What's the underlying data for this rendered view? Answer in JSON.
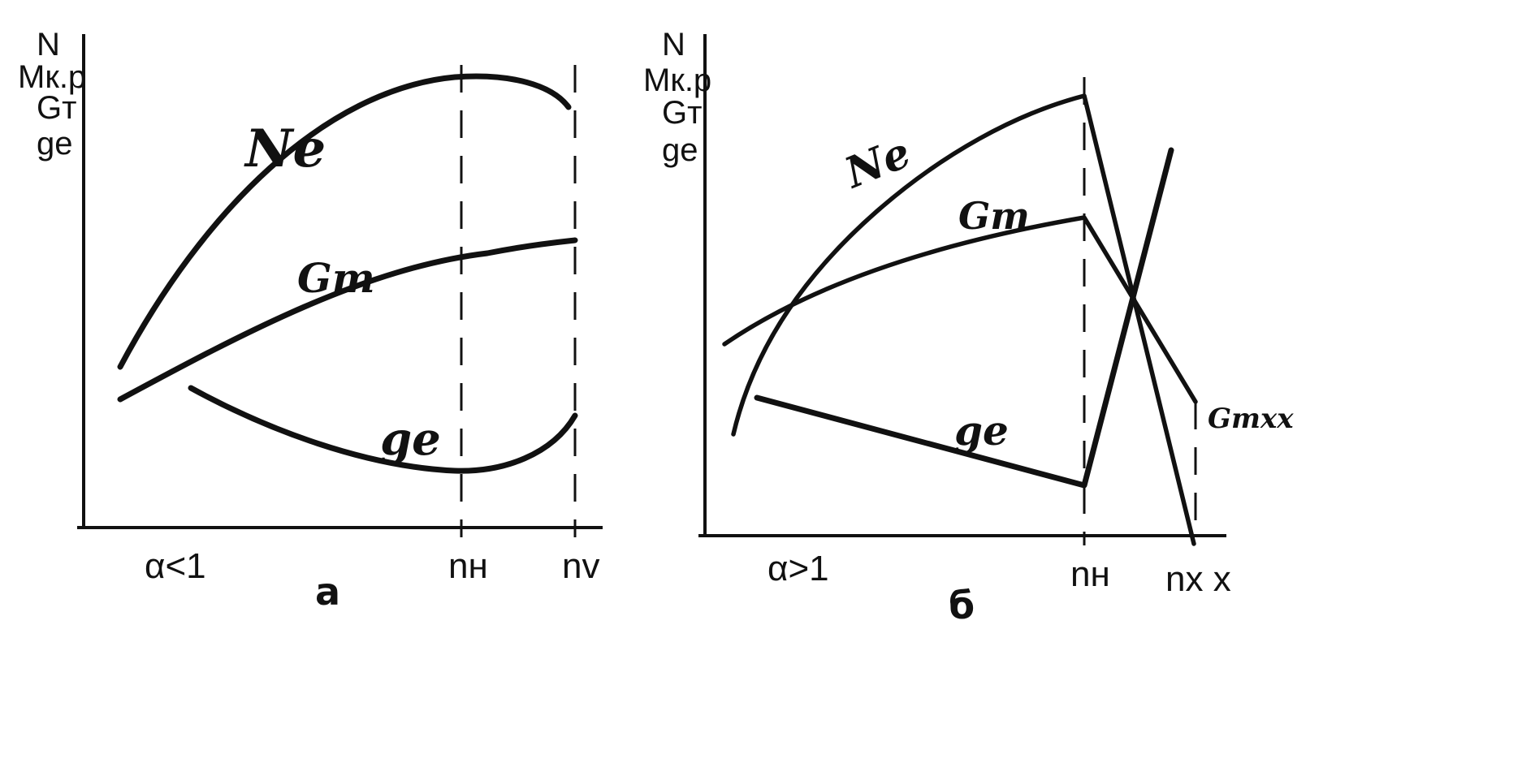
{
  "chart_data": [
    {
      "type": "line",
      "caption": "а",
      "y_labels": [
        "N",
        "Mк.р",
        "Gт",
        "ge"
      ],
      "x_ticks": [
        "α<1",
        "nн",
        "nv"
      ],
      "ylim": [
        0,
        10
      ],
      "series": [
        {
          "name": "Ne",
          "points": [
            [
              0.13,
              3.4
            ],
            [
              0.3,
              6.6
            ],
            [
              0.6,
              8.9
            ],
            [
              0.73,
              9.3
            ],
            [
              0.86,
              9.1
            ],
            [
              0.95,
              8.6
            ]
          ]
        },
        {
          "name": "Gт",
          "points": [
            [
              0.13,
              2.6
            ],
            [
              0.35,
              4.0
            ],
            [
              0.6,
              5.3
            ],
            [
              0.73,
              5.6
            ],
            [
              0.95,
              5.9
            ]
          ]
        },
        {
          "name": "ge",
          "points": [
            [
              0.24,
              2.9
            ],
            [
              0.45,
              1.8
            ],
            [
              0.62,
              1.3
            ],
            [
              0.73,
              1.2
            ],
            [
              0.86,
              1.6
            ],
            [
              0.95,
              2.3
            ]
          ]
        }
      ],
      "guides": [
        0.73,
        0.95
      ]
    },
    {
      "type": "line",
      "caption": "б",
      "y_labels": [
        "N",
        "Mк.р",
        "Gт",
        "ge"
      ],
      "x_ticks": [
        "α>1",
        "nн",
        "nx x"
      ],
      "ylim": [
        0,
        10
      ],
      "series": [
        {
          "name": "Ne",
          "points": [
            [
              0.05,
              2.0
            ],
            [
              0.12,
              4.4
            ],
            [
              0.3,
              6.8
            ],
            [
              0.5,
              8.2
            ],
            [
              0.6,
              8.8
            ],
            [
              0.8,
              0.0
            ]
          ]
        },
        {
          "name": "Gт",
          "points": [
            [
              0.03,
              3.8
            ],
            [
              0.25,
              5.1
            ],
            [
              0.6,
              6.3
            ],
            [
              0.8,
              2.6
            ]
          ]
        },
        {
          "name": "ge",
          "points": [
            [
              0.08,
              2.7
            ],
            [
              0.6,
              1.0
            ],
            [
              0.74,
              7.6
            ]
          ]
        },
        {
          "name": "Gтxx",
          "points": []
        }
      ],
      "guides": [
        0.6,
        0.8
      ]
    }
  ]
}
